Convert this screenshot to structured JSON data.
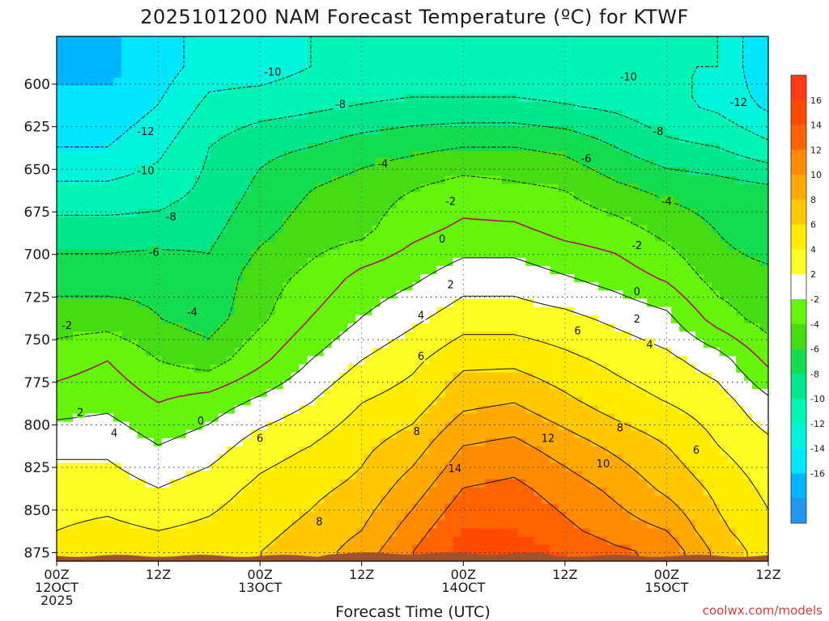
{
  "chart_data": {
    "type": "heatmap",
    "title": "2025101200 NAM Forecast Temperature (ºC) for KTWF",
    "xlabel": "Forecast Time (UTC)",
    "ylabel": "",
    "credit": "coolwx.com/models",
    "x_ticks": [
      {
        "hour": 0,
        "lines": [
          "00Z",
          "12OCT",
          "2025"
        ]
      },
      {
        "hour": 12,
        "lines": [
          "12Z"
        ]
      },
      {
        "hour": 24,
        "lines": [
          "00Z",
          "13OCT"
        ]
      },
      {
        "hour": 36,
        "lines": [
          "12Z"
        ]
      },
      {
        "hour": 48,
        "lines": [
          "00Z",
          "14OCT"
        ]
      },
      {
        "hour": 60,
        "lines": [
          "12Z"
        ]
      },
      {
        "hour": 72,
        "lines": [
          "00Z",
          "15OCT"
        ]
      },
      {
        "hour": 84,
        "lines": [
          "12Z"
        ]
      }
    ],
    "xlim": [
      0,
      84
    ],
    "y_ticks": [
      600,
      625,
      650,
      675,
      700,
      725,
      750,
      775,
      800,
      825,
      850,
      875
    ],
    "ylim": [
      572,
      880
    ],
    "surface_pressure_hpa": 875,
    "colorbar_ticks": [
      16,
      14,
      12,
      10,
      8,
      6,
      4,
      2,
      -2,
      -4,
      -6,
      -8,
      -10,
      -12,
      -14,
      -16
    ],
    "colorbar_colors": [
      "#2196f3",
      "#00b4ff",
      "#00e6ff",
      "#00f5dc",
      "#00f5b4",
      "#00e68c",
      "#14dc50",
      "#46dc14",
      "#64f50a",
      "#ffffff",
      "#ffff28",
      "#ffeb00",
      "#ffc800",
      "#ffaa00",
      "#ff8c00",
      "#ff6400",
      "#ff4b00",
      "#ff3c14"
    ],
    "levels_hpa": [
      590,
      612,
      637,
      662,
      687,
      712,
      737,
      762,
      787,
      812,
      837,
      862,
      875
    ],
    "hours": [
      0,
      6,
      12,
      18,
      24,
      30,
      36,
      42,
      48,
      54,
      60,
      66,
      72,
      78,
      84
    ],
    "values_c": [
      [
        -14.5,
        -14.5,
        -13,
        -11,
        -11,
        -10,
        -10,
        -10,
        -10,
        -10,
        -10,
        -10,
        -10,
        -10,
        -14
      ],
      [
        -13.5,
        -13.5,
        -12,
        -9.5,
        -9,
        -8.5,
        -8,
        -7.5,
        -7.5,
        -7.5,
        -8,
        -8.5,
        -9.5,
        -10.5,
        -12.5
      ],
      [
        -12,
        -12,
        -10.5,
        -8,
        -6.5,
        -6,
        -5,
        -4.5,
        -4,
        -4,
        -4.5,
        -6,
        -7.5,
        -8,
        -9.5
      ],
      [
        -9.5,
        -9.5,
        -9,
        -7.5,
        -5.5,
        -4,
        -3,
        -2,
        -1,
        -1.5,
        -2,
        -3.5,
        -4.5,
        -5,
        -5.5
      ],
      [
        -7,
        -7,
        -7,
        -6.5,
        -4.5,
        -3,
        -2.5,
        -0.5,
        0.5,
        0.5,
        -0.5,
        -1,
        -2.5,
        -4,
        -5.5
      ],
      [
        -5,
        -5,
        -4.5,
        -5.5,
        -3,
        -1.5,
        0.5,
        1.5,
        3,
        3,
        2,
        1,
        -0.5,
        -3,
        -3.5
      ],
      [
        -3,
        -3,
        -4,
        -5,
        -2.5,
        0,
        2,
        3.5,
        5,
        5,
        4.5,
        3.5,
        2.5,
        -1,
        -3
      ],
      [
        -1,
        0,
        -2,
        -3,
        -0.5,
        2,
        4,
        5.5,
        7.5,
        7.5,
        6.5,
        5.5,
        4.5,
        3,
        -0.5
      ],
      [
        1,
        1.5,
        0,
        1,
        2.5,
        4,
        6,
        7,
        9.5,
        10,
        8.5,
        7,
        6,
        5,
        2.5
      ],
      [
        3.5,
        3.5,
        2,
        3,
        5,
        6,
        7.5,
        9,
        12,
        12.5,
        11,
        9.5,
        8,
        6,
        4.5
      ],
      [
        5,
        5,
        4,
        5,
        6.5,
        7.5,
        8.5,
        11,
        14,
        14.5,
        13,
        11.5,
        9.5,
        7.5,
        5.5
      ],
      [
        6,
        6.5,
        6,
        6.5,
        7.5,
        8.5,
        10,
        13,
        16,
        16,
        14.5,
        13,
        12,
        8.5,
        6.5
      ],
      [
        6.5,
        7,
        6.5,
        7,
        8,
        9,
        11,
        14,
        17,
        17,
        16,
        14.5,
        13.5,
        9.5,
        7
      ]
    ],
    "contour_levels": [
      -12,
      -10,
      -8,
      -6,
      -4,
      -2,
      0,
      2,
      4,
      6,
      8,
      10,
      12,
      14
    ],
    "contour_labels": [
      {
        "text": "-10",
        "hour": 25.5,
        "hpa": 593
      },
      {
        "text": "-10",
        "hour": 67.5,
        "hpa": 596
      },
      {
        "text": "-8",
        "hour": 33.5,
        "hpa": 612
      },
      {
        "text": "-12",
        "hour": 80.5,
        "hpa": 611
      },
      {
        "text": "-12",
        "hour": 10.5,
        "hpa": 628
      },
      {
        "text": "-8",
        "hour": 71,
        "hpa": 628
      },
      {
        "text": "-6",
        "hour": 62.5,
        "hpa": 644
      },
      {
        "text": "-10",
        "hour": 10.5,
        "hpa": 651
      },
      {
        "text": "-4",
        "hour": 38.5,
        "hpa": 647
      },
      {
        "text": "-2",
        "hour": 46.5,
        "hpa": 669
      },
      {
        "text": "-4",
        "hour": 72,
        "hpa": 669
      },
      {
        "text": "-8",
        "hour": 13.5,
        "hpa": 678
      },
      {
        "text": "0",
        "hour": 45.5,
        "hpa": 691
      },
      {
        "text": "-2",
        "hour": 68.5,
        "hpa": 695
      },
      {
        "text": "-6",
        "hour": 11.5,
        "hpa": 699
      },
      {
        "text": "2",
        "hour": 46.5,
        "hpa": 718
      },
      {
        "text": "0",
        "hour": 68.5,
        "hpa": 722
      },
      {
        "text": "-4",
        "hour": 16,
        "hpa": 734
      },
      {
        "text": "-2",
        "hour": 1.2,
        "hpa": 742
      },
      {
        "text": "4",
        "hour": 43,
        "hpa": 736
      },
      {
        "text": "2",
        "hour": 68.5,
        "hpa": 738
      },
      {
        "text": "6",
        "hour": 61.5,
        "hpa": 745
      },
      {
        "text": "4",
        "hour": 70,
        "hpa": 753
      },
      {
        "text": "6",
        "hour": 43,
        "hpa": 760
      },
      {
        "text": "2",
        "hour": 2.8,
        "hpa": 793
      },
      {
        "text": "0",
        "hour": 17,
        "hpa": 798
      },
      {
        "text": "8",
        "hour": 42.5,
        "hpa": 804
      },
      {
        "text": "8",
        "hour": 66.5,
        "hpa": 802
      },
      {
        "text": "4",
        "hour": 6.8,
        "hpa": 805
      },
      {
        "text": "6",
        "hour": 24,
        "hpa": 808
      },
      {
        "text": "12",
        "hour": 58,
        "hpa": 808
      },
      {
        "text": "6",
        "hour": 75.5,
        "hpa": 815
      },
      {
        "text": "10",
        "hour": 64.5,
        "hpa": 823
      },
      {
        "text": "14",
        "hour": 47,
        "hpa": 826
      },
      {
        "text": "8",
        "hour": 31,
        "hpa": 857
      }
    ]
  }
}
